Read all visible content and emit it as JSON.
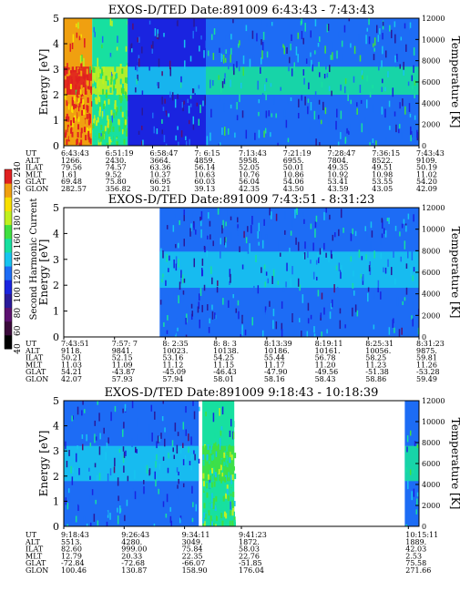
{
  "chart_data": [
    {
      "type": "heatmap",
      "title": "EXOS-D/TED",
      "date": "Date:891009",
      "time_range": "6:43:43 - 7:43:43",
      "ylabel": "Energy [eV]",
      "y2label": "Temperature [K]",
      "ylim": [
        0,
        5
      ],
      "y2lim": [
        0,
        12000
      ],
      "yticks": [
        "0",
        "1",
        "2",
        "3",
        "4",
        "5"
      ],
      "y2ticks": [
        "0",
        "2000",
        "4000",
        "6000",
        "8000",
        "10000",
        "12000"
      ],
      "row_labels": [
        "UT",
        "ALT",
        "ILAT",
        "MLT",
        "GLAT",
        "GLON"
      ],
      "columns": [
        [
          "6:43:43",
          "1266.",
          "79.56",
          "1.61",
          "69.48",
          "282.57"
        ],
        [
          "6:51:19",
          "2430.",
          "74.57",
          "9.52",
          "75.80",
          "356.82"
        ],
        [
          "6:58:47",
          "3664.",
          "63.36",
          "10.37",
          "66.95",
          "30.21"
        ],
        [
          "7: 6:15",
          "4859.",
          "56.14",
          "10.63",
          "60.03",
          "39.13"
        ],
        [
          "7:13:43",
          "5958.",
          "52.05",
          "10.76",
          "56.04",
          "42.35"
        ],
        [
          "7:21:19",
          "6955.",
          "50.01",
          "10.86",
          "54.06",
          "43.50"
        ],
        [
          "7:28:47",
          "7804.",
          "49.35",
          "10.92",
          "53.41",
          "43.59"
        ],
        [
          "7:36:15",
          "8522.",
          "49.51",
          "10.98",
          "53.55",
          "43.05"
        ],
        [
          "7:43:43",
          "9109.",
          "50.19",
          "11.02",
          "54.20",
          "42.09"
        ]
      ],
      "no_data_segments": [],
      "intensity_profile": [
        {
          "t0": 0.0,
          "t1": 0.08,
          "level": 90
        },
        {
          "t0": 0.08,
          "t1": 0.18,
          "level": 60
        },
        {
          "t0": 0.18,
          "t1": 0.4,
          "level": 35
        },
        {
          "t0": 0.4,
          "t1": 1.0,
          "level": 45
        }
      ],
      "temperature_band_eV": [
        2.0,
        3.1
      ]
    },
    {
      "type": "heatmap",
      "title": "EXOS-D/TED",
      "date": "Date:891009",
      "time_range": "7:43:51 - 8:31:23",
      "ylabel": "Energy [eV]",
      "y2label": "Temperature [K]",
      "ylim": [
        0,
        5
      ],
      "y2lim": [
        0,
        12000
      ],
      "yticks": [
        "0",
        "1",
        "2",
        "3",
        "4",
        "5"
      ],
      "y2ticks": [
        "0",
        "2000",
        "4000",
        "6000",
        "8000",
        "10000",
        "12000"
      ],
      "row_labels": [
        "UT",
        "ALT",
        "ILAT",
        "MLT",
        "GLAT",
        "GLON"
      ],
      "columns": [
        [
          "7:43:51",
          "9118.",
          "50.21",
          "11.03",
          "54.21",
          "42.07"
        ],
        [
          "7:57: 7",
          "9841.",
          "52.15",
          "11.09",
          "-43.87",
          "57.93"
        ],
        [
          "8: 2:35",
          "10023.",
          "53.16",
          "11.12",
          "-45.09",
          "57.94"
        ],
        [
          "8: 8: 3",
          "10138.",
          "54.25",
          "11.15",
          "-46.43",
          "58.01"
        ],
        [
          "8:13:39",
          "10186.",
          "55.44",
          "11.17",
          "-47.90",
          "58.16"
        ],
        [
          "8:19:11",
          "10161.",
          "56.78",
          "11.20",
          "-49.56",
          "58.43"
        ],
        [
          "8:25:31",
          "10056.",
          "58.25",
          "11.23",
          "-51.38",
          "58.86"
        ],
        [
          "8:31:23",
          "9875.",
          "59.81",
          "11.26",
          "-53.28",
          "59.49"
        ]
      ],
      "no_data_segments": [
        [
          0.03,
          0.27
        ]
      ],
      "intensity_profile": [
        {
          "t0": 0.27,
          "t1": 1.0,
          "level": 40
        }
      ],
      "temperature_band_eV": [
        1.9,
        3.3
      ]
    },
    {
      "type": "heatmap",
      "title": "EXOS-D/TED",
      "date": "Date:891009",
      "time_range": "9:18:43 - 10:18:39",
      "ylabel": "Energy [eV]",
      "y2label": "Temperature [K]",
      "ylim": [
        0,
        5
      ],
      "y2lim": [
        0,
        12000
      ],
      "yticks": [
        "0",
        "1",
        "2",
        "3",
        "4",
        "5"
      ],
      "y2ticks": [
        "0",
        "2000",
        "4000",
        "6000",
        "8000",
        "10000",
        "12000"
      ],
      "row_labels": [
        "UT",
        "ALT",
        "ILAT",
        "MLT",
        "GLAT",
        "GLON"
      ],
      "columns": [
        [
          "9:18:43",
          "5513.",
          "82.60",
          "12.79",
          "-72.84",
          "100.46"
        ],
        [
          "9:26:43",
          "4280.",
          "999.00",
          "20.33",
          "-72.68",
          "130.87"
        ],
        [
          "9:34:11",
          "3049.",
          "75.84",
          "22.35",
          "-66.07",
          "158.90"
        ],
        [
          "9:41:23",
          "1872.",
          "58.03",
          "22.76",
          "-51.85",
          "176.04"
        ],
        [
          "10:15:11",
          "1889.",
          "42.03",
          "2.53",
          "75.58",
          "271.66"
        ]
      ],
      "column_positions": [
        0.0,
        0.17,
        0.34,
        0.5,
        0.97
      ],
      "no_data_segments": [
        [
          0.38,
          0.39
        ],
        [
          0.48,
          0.96
        ]
      ],
      "intensity_profile": [
        {
          "t0": 0.0,
          "t1": 0.38,
          "level": 40
        },
        {
          "t0": 0.39,
          "t1": 0.48,
          "level": 55
        },
        {
          "t0": 0.96,
          "t1": 1.0,
          "level": 45
        }
      ],
      "temperature_band_eV": [
        1.8,
        3.2
      ]
    }
  ],
  "colorbar": {
    "label": "Second Harmonic Current",
    "ticks": [
      "40",
      "60",
      "80",
      "100",
      "120",
      "140",
      "160",
      "180",
      "200",
      "220",
      "240"
    ],
    "range": [
      40,
      240
    ],
    "colors": [
      "#000000",
      "#3b0a3b",
      "#5c1070",
      "#2a1a9a",
      "#1a24e0",
      "#1d6cf5",
      "#17c4f0",
      "#17e0a0",
      "#40e040",
      "#c0f020",
      "#f8e000",
      "#f0a010",
      "#e02020"
    ]
  }
}
